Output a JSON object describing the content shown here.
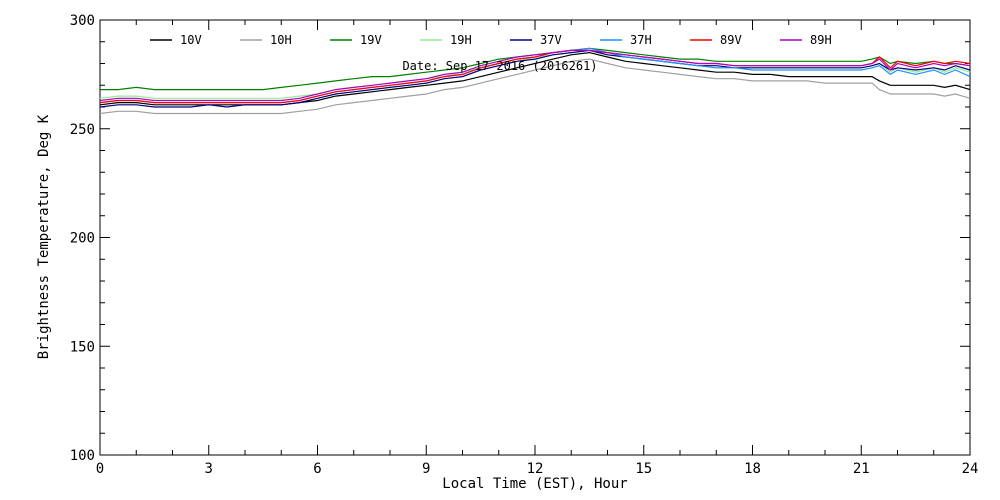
{
  "chart_data": {
    "type": "line",
    "title": "",
    "xlabel": "Local Time (EST), Hour",
    "ylabel": "Brightness Temperature, Deg K",
    "xlim": [
      0,
      24
    ],
    "ylim": [
      100,
      300
    ],
    "xticks": [
      0,
      3,
      6,
      9,
      12,
      15,
      18,
      21,
      24
    ],
    "yticks": [
      100,
      150,
      200,
      250,
      300
    ],
    "grid": false,
    "legend_position": "top",
    "annotation": "Date: Sep 17 2016 (2016261)",
    "x": [
      0,
      0.5,
      1,
      1.5,
      2,
      2.5,
      3,
      3.5,
      4,
      4.5,
      5,
      5.5,
      6,
      6.5,
      7,
      7.5,
      8,
      8.5,
      9,
      9.5,
      10,
      10.5,
      11,
      11.5,
      12,
      12.5,
      13,
      13.5,
      14,
      14.5,
      15,
      15.5,
      16,
      16.5,
      17,
      17.5,
      18,
      18.5,
      19,
      19.5,
      20,
      20.5,
      21,
      21.3,
      21.5,
      21.8,
      22,
      22.5,
      23,
      23.3,
      23.6,
      24
    ],
    "series": [
      {
        "name": "10V",
        "color": "#000000",
        "values": [
          261,
          262,
          262,
          261,
          261,
          261,
          261,
          261,
          261,
          261,
          261,
          262,
          263,
          265,
          266,
          267,
          268,
          269,
          270,
          271,
          272,
          274,
          276,
          278,
          280,
          282,
          284,
          285,
          283,
          281,
          280,
          279,
          278,
          277,
          276,
          276,
          275,
          275,
          274,
          274,
          274,
          274,
          274,
          274,
          272,
          270,
          270,
          270,
          270,
          269,
          270,
          268
        ]
      },
      {
        "name": "10H",
        "color": "#a0a0a0",
        "values": [
          257,
          258,
          258,
          257,
          257,
          257,
          257,
          257,
          257,
          257,
          257,
          258,
          259,
          261,
          262,
          263,
          264,
          265,
          266,
          268,
          269,
          271,
          273,
          275,
          277,
          279,
          281,
          282,
          280,
          278,
          277,
          276,
          275,
          274,
          273,
          273,
          272,
          272,
          272,
          272,
          271,
          271,
          271,
          271,
          268,
          266,
          266,
          266,
          266,
          265,
          266,
          264
        ]
      },
      {
        "name": "19V",
        "color": "#008000",
        "values": [
          268,
          268,
          269,
          268,
          268,
          268,
          268,
          268,
          268,
          268,
          269,
          270,
          271,
          272,
          273,
          274,
          274,
          275,
          276,
          277,
          278,
          280,
          282,
          283,
          284,
          285,
          286,
          287,
          286,
          285,
          284,
          283,
          282,
          282,
          281,
          281,
          281,
          281,
          281,
          281,
          281,
          281,
          281,
          282,
          283,
          280,
          281,
          280,
          281,
          280,
          280,
          279
        ]
      },
      {
        "name": "19H",
        "color": "#90ee90",
        "values": [
          264,
          265,
          265,
          264,
          264,
          264,
          264,
          264,
          264,
          264,
          264,
          265,
          266,
          268,
          269,
          270,
          271,
          272,
          273,
          274,
          276,
          278,
          280,
          281,
          283,
          284,
          285,
          286,
          284,
          283,
          282,
          281,
          280,
          279,
          278,
          278,
          278,
          278,
          278,
          278,
          278,
          278,
          278,
          279,
          280,
          276,
          278,
          276,
          278,
          276,
          278,
          276
        ]
      },
      {
        "name": "37V",
        "color": "#000080",
        "values": [
          260,
          261,
          261,
          260,
          260,
          260,
          261,
          260,
          261,
          261,
          261,
          262,
          264,
          266,
          267,
          268,
          269,
          270,
          271,
          273,
          274,
          277,
          279,
          281,
          282,
          284,
          285,
          286,
          284,
          283,
          282,
          281,
          280,
          279,
          279,
          278,
          278,
          278,
          278,
          278,
          278,
          278,
          278,
          279,
          280,
          277,
          278,
          277,
          278,
          277,
          279,
          277
        ]
      },
      {
        "name": "37H",
        "color": "#1e90ff",
        "values": [
          262,
          263,
          263,
          262,
          262,
          262,
          262,
          262,
          262,
          262,
          262,
          263,
          265,
          267,
          268,
          269,
          270,
          271,
          272,
          274,
          275,
          278,
          280,
          282,
          283,
          285,
          286,
          287,
          285,
          283,
          282,
          281,
          280,
          279,
          278,
          278,
          277,
          277,
          277,
          277,
          277,
          277,
          277,
          278,
          279,
          275,
          277,
          275,
          277,
          275,
          277,
          274
        ]
      },
      {
        "name": "89V",
        "color": "#ff0000",
        "values": [
          262,
          263,
          263,
          262,
          262,
          262,
          262,
          262,
          262,
          262,
          262,
          263,
          265,
          267,
          268,
          269,
          270,
          271,
          272,
          274,
          275,
          278,
          280,
          282,
          283,
          285,
          286,
          286,
          285,
          284,
          283,
          282,
          281,
          280,
          280,
          279,
          279,
          279,
          279,
          279,
          279,
          279,
          279,
          280,
          283,
          278,
          281,
          279,
          281,
          280,
          281,
          280
        ]
      },
      {
        "name": "89H",
        "color": "#b000c0",
        "values": [
          263,
          264,
          264,
          263,
          263,
          263,
          263,
          263,
          263,
          263,
          263,
          264,
          266,
          268,
          269,
          270,
          271,
          272,
          273,
          275,
          276,
          279,
          281,
          283,
          284,
          285,
          286,
          286,
          285,
          284,
          283,
          282,
          281,
          280,
          280,
          279,
          279,
          279,
          279,
          279,
          279,
          279,
          279,
          280,
          282,
          277,
          280,
          278,
          280,
          279,
          280,
          279
        ]
      }
    ]
  }
}
